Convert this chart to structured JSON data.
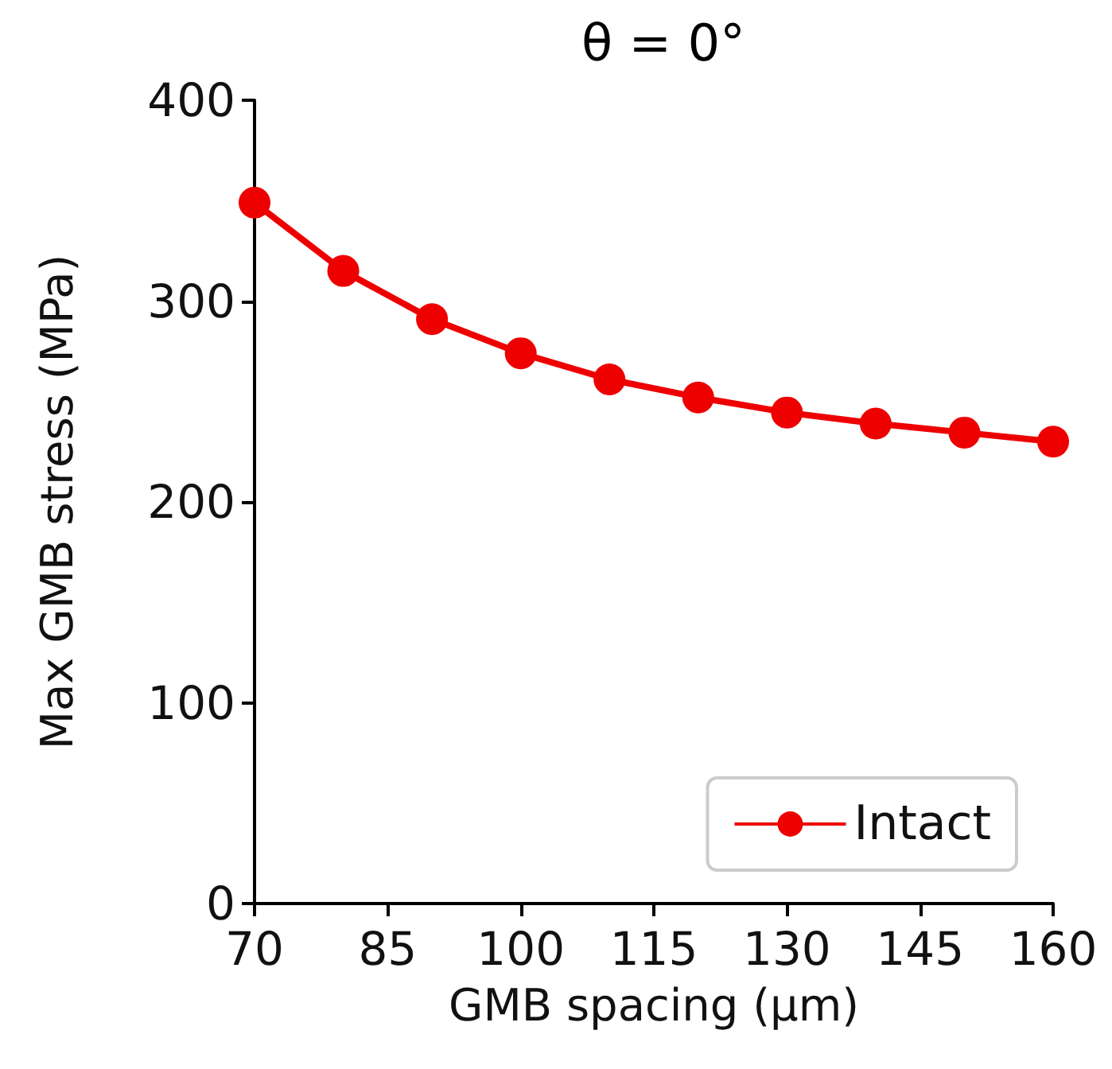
{
  "chart_data": {
    "type": "line",
    "title": "θ = 0°",
    "xlabel": "GMB spacing (μm)",
    "ylabel": "Max GMB stress (MPa)",
    "x": [
      70,
      80,
      90,
      100,
      110,
      120,
      130,
      140,
      150,
      160
    ],
    "series": [
      {
        "name": "Intact",
        "color": "#ee0000",
        "values": [
          349,
          315,
          291,
          274,
          261,
          252,
          244.5,
          239,
          234.5,
          230
        ]
      }
    ],
    "xlim": [
      70,
      160
    ],
    "xticks": [
      70,
      85,
      100,
      115,
      130,
      145,
      160
    ],
    "ylim": [
      0,
      400
    ],
    "yticks": [
      0,
      100,
      200,
      300,
      400
    ],
    "grid": false,
    "legend": "bottom right",
    "marker": "circle",
    "line_style": "solid"
  }
}
